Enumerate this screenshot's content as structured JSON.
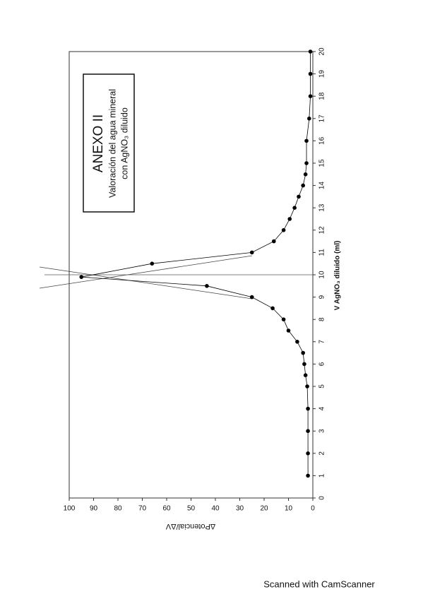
{
  "chart_data": {
    "type": "line",
    "annotation": [
      "ANEXO II",
      "Valoración del agua mineral",
      "con AgNO₃ diluido"
    ],
    "x_label": "V AgNO₃ diluido (ml)",
    "y_label": "ΔPotencial/ΔV",
    "series": [
      {
        "color": "#000000",
        "x": [
          1,
          2,
          3,
          4,
          5,
          5.5,
          6,
          6.5,
          7,
          7.5,
          8,
          8.5,
          9,
          9.5,
          9.9,
          10.5,
          11,
          11.5,
          12,
          12.5,
          13,
          13.5,
          14,
          14.5,
          15,
          16,
          17,
          18,
          19,
          20
        ],
        "values": [
          2,
          2,
          2,
          2,
          2.3,
          3,
          3.5,
          4,
          6.4,
          10,
          12,
          16.5,
          25,
          43.5,
          95,
          66,
          25,
          16,
          12,
          9.5,
          7.5,
          5.8,
          4,
          3,
          2.6,
          2.6,
          1.5,
          1,
          1,
          1
        ]
      }
    ],
    "xlim": [
      0,
      20
    ],
    "xticks": [
      0,
      1,
      2,
      3,
      4,
      5,
      6,
      7,
      8,
      9,
      10,
      11,
      12,
      13,
      14,
      15,
      16,
      17,
      18,
      19,
      20
    ],
    "ylim": [
      0,
      100
    ],
    "yticks": [
      0,
      10,
      20,
      30,
      40,
      50,
      60,
      70,
      80,
      90,
      100
    ]
  },
  "footer": "Scanned with CamScanner"
}
